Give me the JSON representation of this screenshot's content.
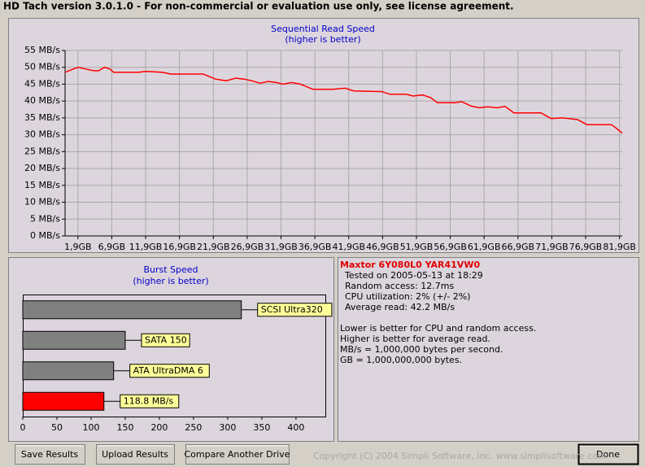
{
  "window": {
    "title": "HD Tach version 3.0.1.0  - For non-commercial or evaluation use only, see license agreement."
  },
  "chart_data": [
    {
      "type": "line",
      "title": "Sequential Read Speed",
      "subtitle": "(higher is better)",
      "x": [
        0,
        1.2,
        2,
        3,
        4.2,
        5,
        5.8,
        6.6,
        7.2,
        10.8,
        12,
        14.4,
        15.6,
        20.4,
        22.2,
        23.8,
        25.2,
        26.4,
        27.6,
        28.8,
        30,
        31.2,
        32.2,
        33.4,
        34.8,
        36.6,
        39.6,
        41.4,
        42.6,
        46.8,
        48,
        50.4,
        51.4,
        52.8,
        54,
        55,
        57.6,
        58.6,
        60,
        61.2,
        62.4,
        63.8,
        65,
        66.3,
        70.3,
        71.8,
        73.3,
        74.5,
        75.7,
        77.1,
        80.7,
        81.7,
        82.3
      ],
      "values": [
        48.5,
        49.5,
        50,
        49.5,
        49,
        49,
        50,
        49.5,
        48.5,
        48.5,
        48.8,
        48.5,
        48,
        48,
        46.5,
        46,
        46.8,
        46.5,
        46,
        45.3,
        45.8,
        45.5,
        45,
        45.5,
        45,
        43.5,
        43.5,
        43.8,
        43,
        42.8,
        42,
        42,
        41.5,
        41.8,
        41,
        39.5,
        39.5,
        39.8,
        38.5,
        38,
        38.3,
        38,
        38.4,
        36.5,
        36.5,
        34.8,
        35,
        34.8,
        34.5,
        33,
        33,
        31.5,
        30.5
      ],
      "color": "#ff0000",
      "xlim": [
        0,
        82.3
      ],
      "ylim": [
        0,
        55
      ],
      "xticks": [
        {
          "value": 1.9,
          "label": "1,9GB"
        },
        {
          "value": 6.9,
          "label": "6,9GB"
        },
        {
          "value": 11.9,
          "label": "11,9GB"
        },
        {
          "value": 16.9,
          "label": "16,9GB"
        },
        {
          "value": 21.9,
          "label": "21,9GB"
        },
        {
          "value": 26.9,
          "label": "26,9GB"
        },
        {
          "value": 31.9,
          "label": "31,9GB"
        },
        {
          "value": 36.9,
          "label": "36,9GB"
        },
        {
          "value": 41.9,
          "label": "41,9GB"
        },
        {
          "value": 46.9,
          "label": "46,9GB"
        },
        {
          "value": 51.9,
          "label": "51,9GB"
        },
        {
          "value": 56.9,
          "label": "56,9GB"
        },
        {
          "value": 61.9,
          "label": "61,9GB"
        },
        {
          "value": 66.9,
          "label": "66,9GB"
        },
        {
          "value": 71.9,
          "label": "71,9GB"
        },
        {
          "value": 76.9,
          "label": "76,9GB"
        },
        {
          "value": 81.9,
          "label": "81,9GB"
        }
      ],
      "yticks": [
        {
          "value": 0,
          "label": "0 MB/s"
        },
        {
          "value": 5,
          "label": "5 MB/s"
        },
        {
          "value": 10,
          "label": "10 MB/s"
        },
        {
          "value": 15,
          "label": "15 MB/s"
        },
        {
          "value": 20,
          "label": "20 MB/s"
        },
        {
          "value": 25,
          "label": "25 MB/s"
        },
        {
          "value": 30,
          "label": "30 MB/s"
        },
        {
          "value": 35,
          "label": "35 MB/s"
        },
        {
          "value": 40,
          "label": "40 MB/s"
        },
        {
          "value": 45,
          "label": "45 MB/s"
        },
        {
          "value": 50,
          "label": "50 MB/s"
        },
        {
          "value": 55,
          "label": "55 MB/s"
        }
      ],
      "grid": true
    },
    {
      "type": "hbar",
      "title": "Burst Speed",
      "subtitle": "(higher is better)",
      "categories": [
        "SCSI Ultra320",
        "SATA 150",
        "ATA UltraDMA 6",
        null
      ],
      "values": [
        320,
        150,
        133,
        118.8
      ],
      "value_labels": [
        null,
        null,
        null,
        "118.8 MB/s"
      ],
      "colors": [
        "#808080",
        "#808080",
        "#808080",
        "#ff0000"
      ],
      "xlim": [
        0,
        443
      ],
      "xticks": [
        0,
        50,
        100,
        150,
        200,
        250,
        300,
        350,
        400
      ]
    }
  ],
  "info": {
    "drive": "Maxtor 6Y080L0 YAR41VW0",
    "lines": [
      "Tested on 2005-05-13 at 18:29",
      "Random access: 12.7ms",
      "CPU utilization: 2% (+/- 2%)",
      "Average read: 42.2 MB/s"
    ],
    "notes": [
      "Lower is better for CPU and random access.",
      "Higher is better for average read.",
      "MB/s = 1,000,000 bytes per second.",
      "GB = 1,000,000,000 bytes."
    ]
  },
  "buttons": [
    "Save Results",
    "Upload Results",
    "Compare Another Drive",
    "Done"
  ],
  "copyright": "Copyright (C) 2004 Simpli Software, Inc. www.simplisoftware.com"
}
